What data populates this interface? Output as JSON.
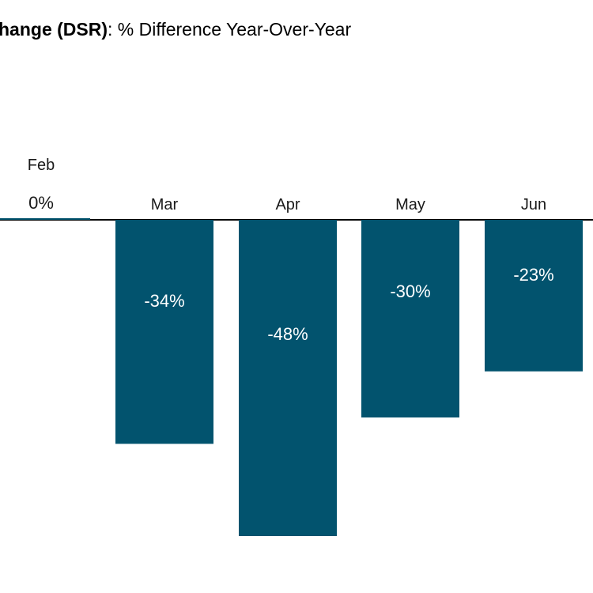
{
  "title": {
    "bold": "hange (DSR)",
    "rest": ": % Difference Year-Over-Year"
  },
  "colors": {
    "bar": "#02536e",
    "axis": "#000000",
    "text": "#1a1a1a"
  },
  "chart_data": {
    "type": "bar",
    "title": "hange (DSR): % Difference Year-Over-Year",
    "categories": [
      "Feb",
      "Mar",
      "Apr",
      "May",
      "Jun"
    ],
    "values": [
      0,
      -34,
      -48,
      -30,
      -23
    ],
    "labels": [
      "0%",
      "-34%",
      "-48%",
      "-30%",
      "-23%"
    ],
    "ylim": [
      -48,
      0
    ],
    "grid": false,
    "legend": "none"
  }
}
